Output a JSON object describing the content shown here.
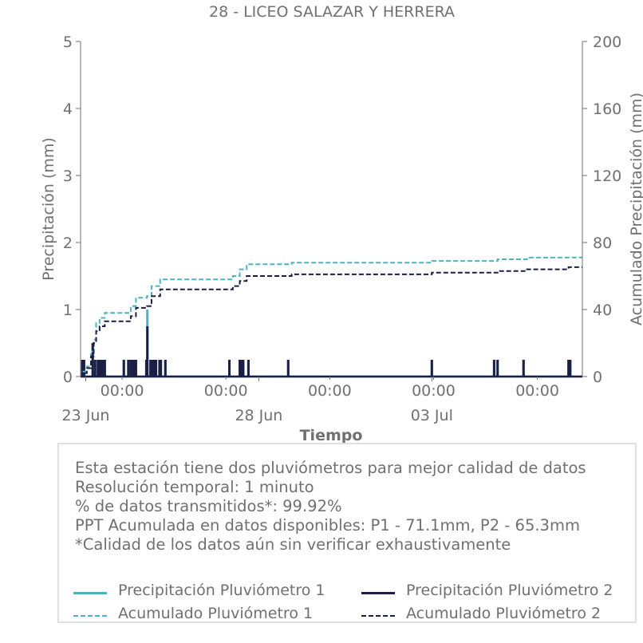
{
  "chart_data": {
    "type": "line",
    "title": "28 - LICEO SALAZAR Y HERRERA",
    "xlabel": "Tiempo",
    "ylabel_left": "Precipitación (mm)",
    "ylabel_right": "Acumulado Precipitación (mm)",
    "x_range_days": [
      0,
      14.5
    ],
    "ylim_left": [
      0,
      5
    ],
    "ylim_right": [
      0,
      200
    ],
    "yticks_left": [
      "0",
      "1",
      "2",
      "3",
      "4",
      "5"
    ],
    "yticks_right": [
      "0",
      "40",
      "80",
      "120",
      "160",
      "200"
    ],
    "xticks_minor": [
      "00:00",
      "00:00",
      "00:00",
      "00:00",
      "00:00"
    ],
    "xticks_major": [
      "23 Jun",
      "28 Jun",
      "03 Jul"
    ],
    "series": [
      {
        "name": "Precipitación Pluviómetro 1",
        "axis": "left",
        "style": "solid",
        "color": "#4fb3bf",
        "events": [
          [
            0.05,
            0.25
          ],
          [
            0.1,
            0.25
          ],
          [
            0.35,
            0.5
          ],
          [
            0.42,
            0.25
          ],
          [
            0.5,
            0.25
          ],
          [
            0.55,
            0.25
          ],
          [
            0.6,
            0.25
          ],
          [
            0.65,
            0.25
          ],
          [
            0.7,
            0.25
          ],
          [
            1.25,
            0.25
          ],
          [
            1.38,
            0.25
          ],
          [
            1.45,
            0.25
          ],
          [
            1.5,
            0.25
          ],
          [
            1.55,
            0.25
          ],
          [
            1.6,
            0.25
          ],
          [
            1.9,
            0.25
          ],
          [
            1.93,
            1.0
          ],
          [
            2.02,
            0.25
          ],
          [
            2.08,
            0.25
          ],
          [
            2.12,
            0.25
          ],
          [
            2.18,
            0.25
          ],
          [
            2.28,
            0.25
          ],
          [
            2.32,
            0.25
          ],
          [
            2.45,
            0.25
          ],
          [
            4.3,
            0.25
          ],
          [
            4.6,
            0.25
          ],
          [
            4.65,
            0.25
          ],
          [
            4.7,
            0.25
          ],
          [
            4.85,
            0.25
          ],
          [
            6.0,
            0.25
          ],
          [
            10.15,
            0.25
          ],
          [
            11.95,
            0.25
          ],
          [
            12.05,
            0.25
          ],
          [
            12.8,
            0.25
          ],
          [
            14.1,
            0.25
          ],
          [
            14.15,
            0.25
          ]
        ]
      },
      {
        "name": "Precipitación Pluviómetro 2",
        "axis": "left",
        "style": "solid",
        "color": "#1c1f45",
        "events": [
          [
            0.05,
            0.25
          ],
          [
            0.1,
            0.25
          ],
          [
            0.35,
            0.5
          ],
          [
            0.42,
            0.25
          ],
          [
            0.5,
            0.25
          ],
          [
            0.55,
            0.25
          ],
          [
            0.6,
            0.25
          ],
          [
            0.65,
            0.25
          ],
          [
            0.7,
            0.25
          ],
          [
            1.25,
            0.25
          ],
          [
            1.38,
            0.25
          ],
          [
            1.45,
            0.25
          ],
          [
            1.5,
            0.25
          ],
          [
            1.55,
            0.25
          ],
          [
            1.6,
            0.25
          ],
          [
            1.9,
            0.25
          ],
          [
            1.93,
            0.75
          ],
          [
            2.02,
            0.25
          ],
          [
            2.08,
            0.25
          ],
          [
            2.12,
            0.25
          ],
          [
            2.18,
            0.25
          ],
          [
            2.28,
            0.25
          ],
          [
            2.32,
            0.25
          ],
          [
            2.45,
            0.25
          ],
          [
            4.3,
            0.25
          ],
          [
            4.6,
            0.25
          ],
          [
            4.65,
            0.25
          ],
          [
            4.7,
            0.25
          ],
          [
            4.85,
            0.25
          ],
          [
            6.0,
            0.25
          ],
          [
            10.15,
            0.25
          ],
          [
            11.95,
            0.25
          ],
          [
            12.05,
            0.25
          ],
          [
            12.8,
            0.25
          ],
          [
            14.1,
            0.25
          ],
          [
            14.15,
            0.25
          ]
        ]
      },
      {
        "name": "Acumulado Pluviómetro 1",
        "axis": "right",
        "style": "dashed",
        "color": "#4fb3bf",
        "x": [
          0,
          0.08,
          0.18,
          0.3,
          0.38,
          0.45,
          0.55,
          0.7,
          1.0,
          1.2,
          1.45,
          1.6,
          1.85,
          1.92,
          2.05,
          2.3,
          3.5,
          4.0,
          4.25,
          4.4,
          4.6,
          4.8,
          5.5,
          5.95,
          6.1,
          7.5,
          9.0,
          10.0,
          10.15,
          11.0,
          11.9,
          12.05,
          12.7,
          12.9,
          14.0,
          14.1,
          14.5
        ],
        "y": [
          0,
          3,
          6,
          15,
          22,
          32,
          35,
          38,
          38,
          38,
          42,
          47,
          47,
          48,
          54,
          58,
          58,
          58,
          58,
          60,
          64,
          67,
          67,
          67,
          68,
          68,
          68,
          68,
          69,
          69,
          69,
          70,
          70,
          71,
          71,
          71.1,
          71.1
        ]
      },
      {
        "name": "Acumulado Pluviómetro 2",
        "axis": "right",
        "style": "dashed",
        "color": "#1c1f45",
        "x": [
          0,
          0.08,
          0.18,
          0.3,
          0.38,
          0.45,
          0.55,
          0.7,
          1.0,
          1.2,
          1.45,
          1.6,
          1.85,
          1.92,
          2.05,
          2.3,
          3.5,
          4.0,
          4.25,
          4.4,
          4.6,
          4.8,
          5.5,
          5.95,
          6.1,
          7.5,
          9.0,
          10.0,
          10.15,
          11.0,
          11.9,
          12.05,
          12.7,
          12.9,
          14.0,
          14.1,
          14.5
        ],
        "y": [
          0,
          2,
          5,
          12,
          20,
          27,
          30,
          33,
          33,
          33,
          36,
          41,
          41,
          42,
          48,
          52,
          52,
          52,
          52,
          54,
          57,
          60,
          60,
          60,
          61,
          61,
          61,
          61,
          62,
          62,
          62,
          63,
          63,
          64,
          64,
          65.3,
          65.3
        ]
      }
    ]
  },
  "info": {
    "line1": "Esta estación tiene dos pluviómetros para mejor calidad de datos",
    "line2": "Resolución temporal: 1 minuto",
    "line3": "% de datos transmitidos*: 99.92%",
    "line4": "PPT Acumulada en datos disponibles: P1 - 71.1mm, P2 - 65.3mm",
    "line5": "*Calidad de los datos aún sin verificar exhaustivamente"
  }
}
